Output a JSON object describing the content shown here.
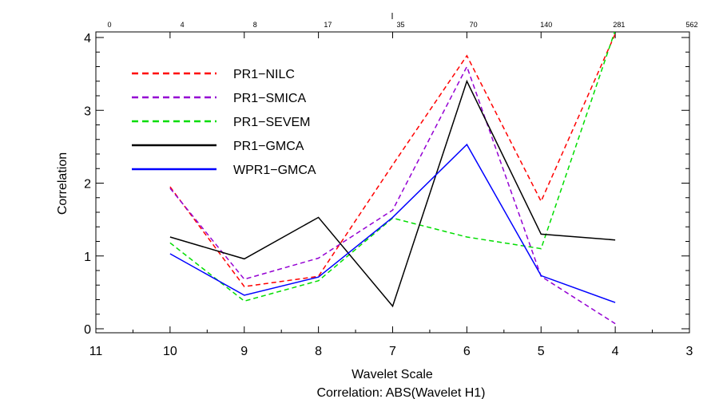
{
  "chart_data": {
    "type": "line",
    "xlabel": "Wavelet Scale",
    "ylabel": "Correlation",
    "subtitle": "Correlation: ABS(Wavelet  H1)",
    "xlim": [
      11,
      3
    ],
    "ylim": [
      0,
      4.05
    ],
    "x_ticks": [
      "11",
      "10",
      "9",
      "8",
      "7",
      "6",
      "5",
      "4",
      "3"
    ],
    "x_tick_values": [
      11,
      10,
      9,
      8,
      7,
      6,
      5,
      4,
      3
    ],
    "y_ticks": [
      "0",
      "1",
      "2",
      "3",
      "4"
    ],
    "y_tick_values": [
      0,
      1,
      2,
      3,
      4
    ],
    "top_axis_ticks": [
      "0",
      "4",
      "8",
      "17",
      "35",
      "70",
      "140",
      "281",
      "562"
    ],
    "legend_position": "top-left",
    "series": [
      {
        "name": "PR1−NILC",
        "color": "#ff0000",
        "style": "dashed",
        "x": [
          10,
          9,
          8,
          7,
          6,
          5,
          4
        ],
        "values": [
          1.95,
          0.58,
          0.72,
          2.25,
          3.75,
          1.75,
          4.05
        ]
      },
      {
        "name": "PR1−SMICA",
        "color": "#9400d3",
        "style": "dashed",
        "x": [
          10,
          9,
          8,
          7,
          6,
          5,
          4
        ],
        "values": [
          1.93,
          0.68,
          0.97,
          1.63,
          3.6,
          0.72,
          0.07
        ]
      },
      {
        "name": "PR1−SEVEM",
        "color": "#00dd00",
        "style": "dashed",
        "x": [
          10,
          9,
          8,
          7,
          6,
          5,
          4
        ],
        "values": [
          1.18,
          0.38,
          0.66,
          1.52,
          1.26,
          1.1,
          4.1
        ]
      },
      {
        "name": "PR1−GMCA",
        "color": "#000000",
        "style": "solid",
        "x": [
          10,
          9,
          8,
          7,
          6,
          5,
          4
        ],
        "values": [
          1.26,
          0.96,
          1.53,
          0.31,
          3.4,
          1.3,
          1.22
        ]
      },
      {
        "name": "WPR1−GMCA",
        "color": "#0000ff",
        "style": "solid",
        "x": [
          10,
          9,
          8,
          7,
          6,
          5,
          4
        ],
        "values": [
          1.03,
          0.46,
          0.71,
          1.53,
          2.53,
          0.73,
          0.36
        ]
      }
    ]
  }
}
